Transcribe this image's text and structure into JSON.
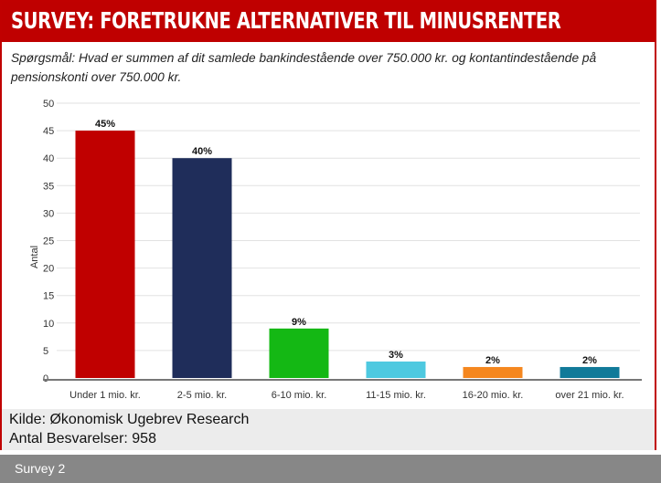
{
  "header": {
    "title": "SURVEY: FORETRUKNE ALTERNATIVER TIL MINUSRENTER"
  },
  "question": "Spørgsmål: Hvad er summen af dit samlede bankindestående over 750.000 kr. og kontantindestående på pensionskonti over 750.000 kr.",
  "chart_data": {
    "type": "bar",
    "title": "",
    "xlabel": "",
    "ylabel": "Antal",
    "ylim": [
      0,
      50
    ],
    "yticks": [
      0,
      5,
      10,
      15,
      20,
      25,
      30,
      35,
      40,
      45,
      50
    ],
    "grid": true,
    "categories": [
      "Under 1 mio. kr.",
      "2-5 mio. kr.",
      "6-10 mio. kr.",
      "11-15 mio. kr.",
      "16-20 mio. kr.",
      "over 21 mio. kr."
    ],
    "values": [
      45,
      40,
      9,
      3,
      2,
      2
    ],
    "data_labels": [
      "45%",
      "40%",
      "9%",
      "3%",
      "2%",
      "2%"
    ],
    "colors": [
      "#c00000",
      "#1f2d5a",
      "#14b814",
      "#4ec9e0",
      "#f5871f",
      "#117a99"
    ]
  },
  "footer": {
    "source": "Kilde: Økonomisk Ugebrev Research",
    "responses": "Antal Besvarelser: 958"
  },
  "caption": "Survey 2"
}
